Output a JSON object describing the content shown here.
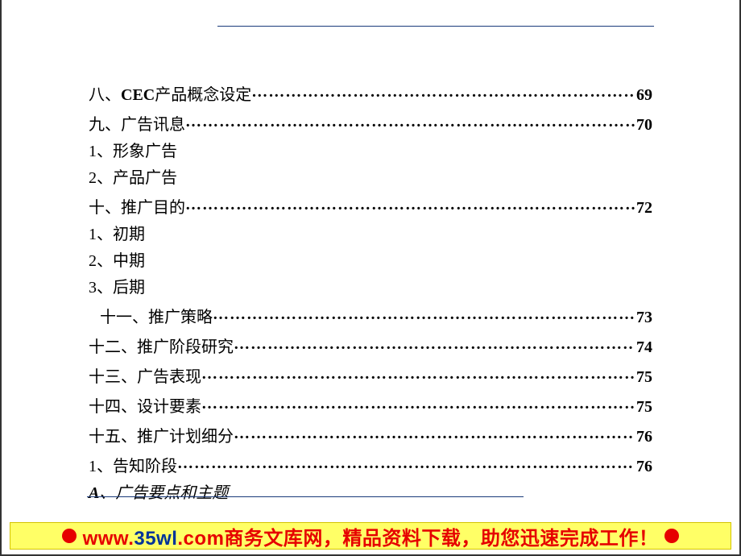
{
  "colors": {
    "rule": "#1a3a7a",
    "text": "#000000",
    "banner_bg": "#ffff66",
    "banner_border": "#d4c400",
    "banner_red": "#e60000",
    "banner_blue": "#003399"
  },
  "typography": {
    "body_family": "SimSun",
    "body_size_pt": 15,
    "page_num_family": "Times New Roman",
    "page_num_bold": true,
    "banner_family": "SimHei",
    "banner_size_pt": 18,
    "banner_bold": true
  },
  "toc": {
    "sec8": {
      "prefix": "八、",
      "bold_run": "CEC",
      "rest": "产品概念设定",
      "page": "69"
    },
    "sec9": {
      "label": "九、广告讯息 ",
      "page": "70"
    },
    "sub_9_1": "1、形象广告",
    "sub_9_2": "2、产品广告",
    "sec10": {
      "label": "十、推广目的 ",
      "page": "72"
    },
    "sub_10_1": "1、初期",
    "sub_10_2": "2、中期",
    "sub_10_3": "3、后期",
    "sec11": {
      "label": "十一、推广策略 ",
      "page": "73",
      "indent": true
    },
    "sec12": {
      "label": "十二、推广阶段研究 ",
      "page": "74"
    },
    "sec13": {
      "label": "十三、广告表现 ",
      "page": "75"
    },
    "sec14": {
      "label": "十四、设计要素 ",
      "page": "75"
    },
    "sec15": {
      "label": "十五、推广计划细分 ",
      "page": "76"
    },
    "sub_15_1": {
      "label": "1、告知阶段",
      "page": "76"
    },
    "sub_15_A": {
      "prefix": "A",
      "rest": "、广告要点和主题"
    }
  },
  "footer": {
    "url_w": "www.",
    "url_mid": "35wl",
    "url_tail": ".com",
    "text_rest": "商务文库网，精品资料下载，助您迅速完成工作！"
  }
}
